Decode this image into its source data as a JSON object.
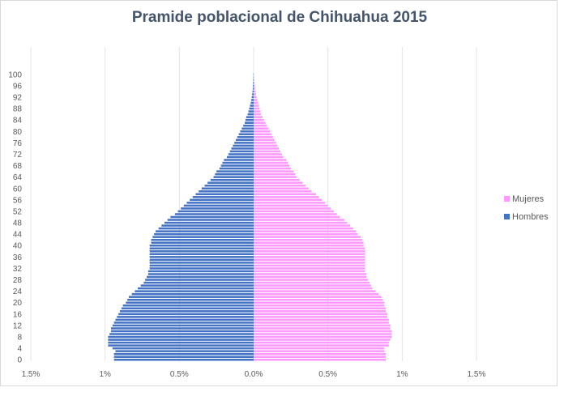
{
  "chart_data": {
    "type": "bar",
    "orientation": "horizontal",
    "title": "Pramide poblacional de Chihuahua 2015",
    "xlabel": "",
    "ylabel": "",
    "x_ticks": [
      "1.5%",
      "1%",
      "0.5%",
      "0.0%",
      "0.5%",
      "1%",
      "1.5%"
    ],
    "xlim": [
      -1.5,
      1.5
    ],
    "y_ticks": [
      "0",
      "4",
      "8",
      "12",
      "16",
      "20",
      "24",
      "28",
      "32",
      "36",
      "40",
      "44",
      "48",
      "52",
      "56",
      "60",
      "64",
      "68",
      "72",
      "76",
      "80",
      "84",
      "88",
      "92",
      "96",
      "100"
    ],
    "ages": [
      0,
      1,
      2,
      3,
      4,
      5,
      6,
      7,
      8,
      9,
      10,
      11,
      12,
      13,
      14,
      15,
      16,
      17,
      18,
      19,
      20,
      21,
      22,
      23,
      24,
      25,
      26,
      27,
      28,
      29,
      30,
      31,
      32,
      33,
      34,
      35,
      36,
      37,
      38,
      39,
      40,
      41,
      42,
      43,
      44,
      45,
      46,
      47,
      48,
      49,
      50,
      51,
      52,
      53,
      54,
      55,
      56,
      57,
      58,
      59,
      60,
      61,
      62,
      63,
      64,
      65,
      66,
      67,
      68,
      69,
      70,
      71,
      72,
      73,
      74,
      75,
      76,
      77,
      78,
      79,
      80,
      81,
      82,
      83,
      84,
      85,
      86,
      87,
      88,
      89,
      90,
      91,
      92,
      93,
      94,
      95,
      96,
      97,
      98,
      99,
      100
    ],
    "grid": true,
    "legend_position": "right",
    "series": [
      {
        "name": "Mujeres",
        "color": "#ff99ff",
        "values": [
          0.89,
          0.89,
          0.89,
          0.88,
          0.88,
          0.91,
          0.91,
          0.92,
          0.93,
          0.93,
          0.93,
          0.92,
          0.92,
          0.91,
          0.91,
          0.9,
          0.9,
          0.89,
          0.89,
          0.88,
          0.88,
          0.87,
          0.86,
          0.84,
          0.82,
          0.8,
          0.79,
          0.78,
          0.77,
          0.76,
          0.76,
          0.75,
          0.75,
          0.75,
          0.75,
          0.75,
          0.75,
          0.75,
          0.75,
          0.75,
          0.74,
          0.74,
          0.73,
          0.72,
          0.7,
          0.69,
          0.67,
          0.65,
          0.63,
          0.61,
          0.58,
          0.56,
          0.54,
          0.52,
          0.5,
          0.48,
          0.46,
          0.44,
          0.42,
          0.39,
          0.37,
          0.35,
          0.33,
          0.31,
          0.29,
          0.28,
          0.27,
          0.25,
          0.24,
          0.23,
          0.22,
          0.2,
          0.19,
          0.18,
          0.17,
          0.16,
          0.15,
          0.14,
          0.13,
          0.12,
          0.11,
          0.1,
          0.09,
          0.08,
          0.07,
          0.06,
          0.05,
          0.045,
          0.04,
          0.035,
          0.03,
          0.025,
          0.02,
          0.016,
          0.013,
          0.01,
          0.008,
          0.006,
          0.004,
          0.003,
          0.002
        ]
      },
      {
        "name": "Hombres",
        "color": "#4472c4",
        "values": [
          -0.94,
          -0.94,
          -0.94,
          -0.93,
          -0.95,
          -0.98,
          -0.98,
          -0.98,
          -0.98,
          -0.97,
          -0.96,
          -0.96,
          -0.95,
          -0.94,
          -0.93,
          -0.92,
          -0.91,
          -0.9,
          -0.89,
          -0.88,
          -0.86,
          -0.85,
          -0.84,
          -0.82,
          -0.8,
          -0.78,
          -0.76,
          -0.74,
          -0.73,
          -0.72,
          -0.71,
          -0.71,
          -0.7,
          -0.7,
          -0.7,
          -0.7,
          -0.7,
          -0.7,
          -0.7,
          -0.7,
          -0.7,
          -0.69,
          -0.69,
          -0.68,
          -0.67,
          -0.66,
          -0.64,
          -0.62,
          -0.6,
          -0.58,
          -0.56,
          -0.53,
          -0.51,
          -0.49,
          -0.47,
          -0.45,
          -0.43,
          -0.41,
          -0.39,
          -0.37,
          -0.35,
          -0.33,
          -0.31,
          -0.29,
          -0.27,
          -0.26,
          -0.25,
          -0.23,
          -0.22,
          -0.21,
          -0.2,
          -0.18,
          -0.17,
          -0.16,
          -0.15,
          -0.14,
          -0.13,
          -0.12,
          -0.11,
          -0.1,
          -0.09,
          -0.08,
          -0.07,
          -0.06,
          -0.055,
          -0.05,
          -0.04,
          -0.035,
          -0.03,
          -0.025,
          -0.02,
          -0.016,
          -0.013,
          -0.01,
          -0.008,
          -0.006,
          -0.005,
          -0.004,
          -0.003,
          -0.002,
          -0.002
        ]
      }
    ]
  }
}
